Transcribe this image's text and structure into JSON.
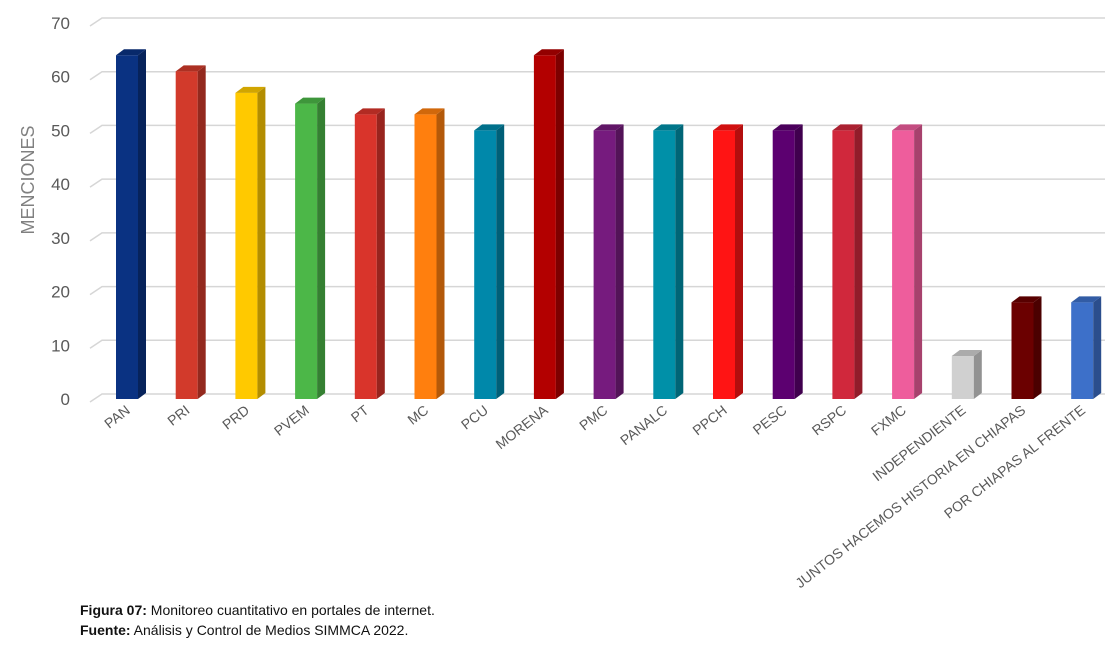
{
  "chart_data": {
    "type": "bar",
    "categories": [
      "PAN",
      "PRI",
      "PRD",
      "PVEM",
      "PT",
      "MC",
      "PCU",
      "MORENA",
      "PMC",
      "PANALC",
      "PPCH",
      "PESC",
      "RSPC",
      "FXMC",
      "INDEPENDIENTE",
      "JUNTOS HACEMOS HISTORIA EN CHIAPAS",
      "POR CHIAPAS AL FRENTE"
    ],
    "values": [
      64,
      61,
      57,
      55,
      53,
      53,
      50,
      64,
      50,
      50,
      50,
      50,
      50,
      50,
      8,
      18,
      18
    ],
    "colors": [
      "#0a3282",
      "#d23a2b",
      "#ffc900",
      "#4cb748",
      "#d9342b",
      "#ff7f0e",
      "#0088aa",
      "#b30000",
      "#761b7e",
      "#0090a8",
      "#ff1414",
      "#5c0070",
      "#d0283c",
      "#ee5d9c",
      "#d0d0d0",
      "#6b0000",
      "#3d70c9"
    ],
    "ylabel": "MENCIONES",
    "xlabel": "",
    "ylim": [
      0,
      70
    ],
    "yticks": [
      0,
      10,
      20,
      30,
      40,
      50,
      60,
      70
    ],
    "grid": true,
    "style": "3d-columns"
  },
  "caption": {
    "figure_label": "Figura 07:",
    "figure_text": " Monitoreo cuantitativo en portales de internet.",
    "source_label": "Fuente:",
    "source_text": " Análisis y Control de Medios SIMMCA 2022."
  }
}
